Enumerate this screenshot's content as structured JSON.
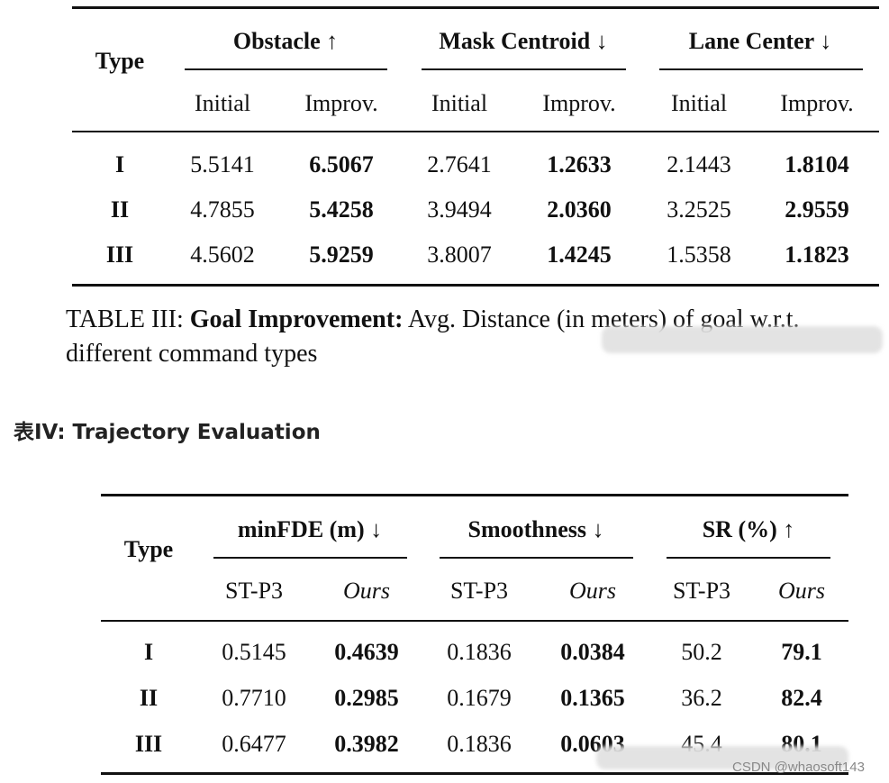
{
  "table3": {
    "header": {
      "type": "Type",
      "groups": [
        "Obstacle ↑",
        "Mask Centroid ↓",
        "Lane Center ↓"
      ],
      "subheaders": [
        "Initial",
        "Improv.",
        "Initial",
        "Improv.",
        "Initial",
        "Improv."
      ]
    },
    "rows": [
      [
        "I",
        "5.5141",
        "6.5067",
        "2.7641",
        "1.2633",
        "2.1443",
        "1.8104"
      ],
      [
        "II",
        "4.7855",
        "5.4258",
        "3.9494",
        "2.0360",
        "3.2525",
        "2.9559"
      ],
      [
        "III",
        "4.5602",
        "5.9259",
        "3.8007",
        "1.4245",
        "1.5358",
        "1.1823"
      ]
    ]
  },
  "caption": {
    "label": "TABLE III:",
    "bold": "Goal Improvement:",
    "text": "Avg. Distance (in meters) of goal w.r.t. different command types"
  },
  "section_heading": "表IV: Trajectory Evaluation",
  "table4": {
    "header": {
      "type": "Type",
      "groups": [
        "minFDE (m) ↓",
        "Smoothness ↓",
        "SR (%) ↑"
      ],
      "subheaders": [
        "ST-P3",
        "Ours",
        "ST-P3",
        "Ours",
        "ST-P3",
        "Ours"
      ]
    },
    "rows": [
      [
        "I",
        "0.5145",
        "0.4639",
        "0.1836",
        "0.0384",
        "50.2",
        "79.1"
      ],
      [
        "II",
        "0.7710",
        "0.2985",
        "0.1679",
        "0.1365",
        "36.2",
        "82.4"
      ],
      [
        "III",
        "0.6477",
        "0.3982",
        "0.1836",
        "0.0603",
        "45.4",
        "80.1"
      ]
    ]
  },
  "watermark": "CSDN @whaosoft143"
}
